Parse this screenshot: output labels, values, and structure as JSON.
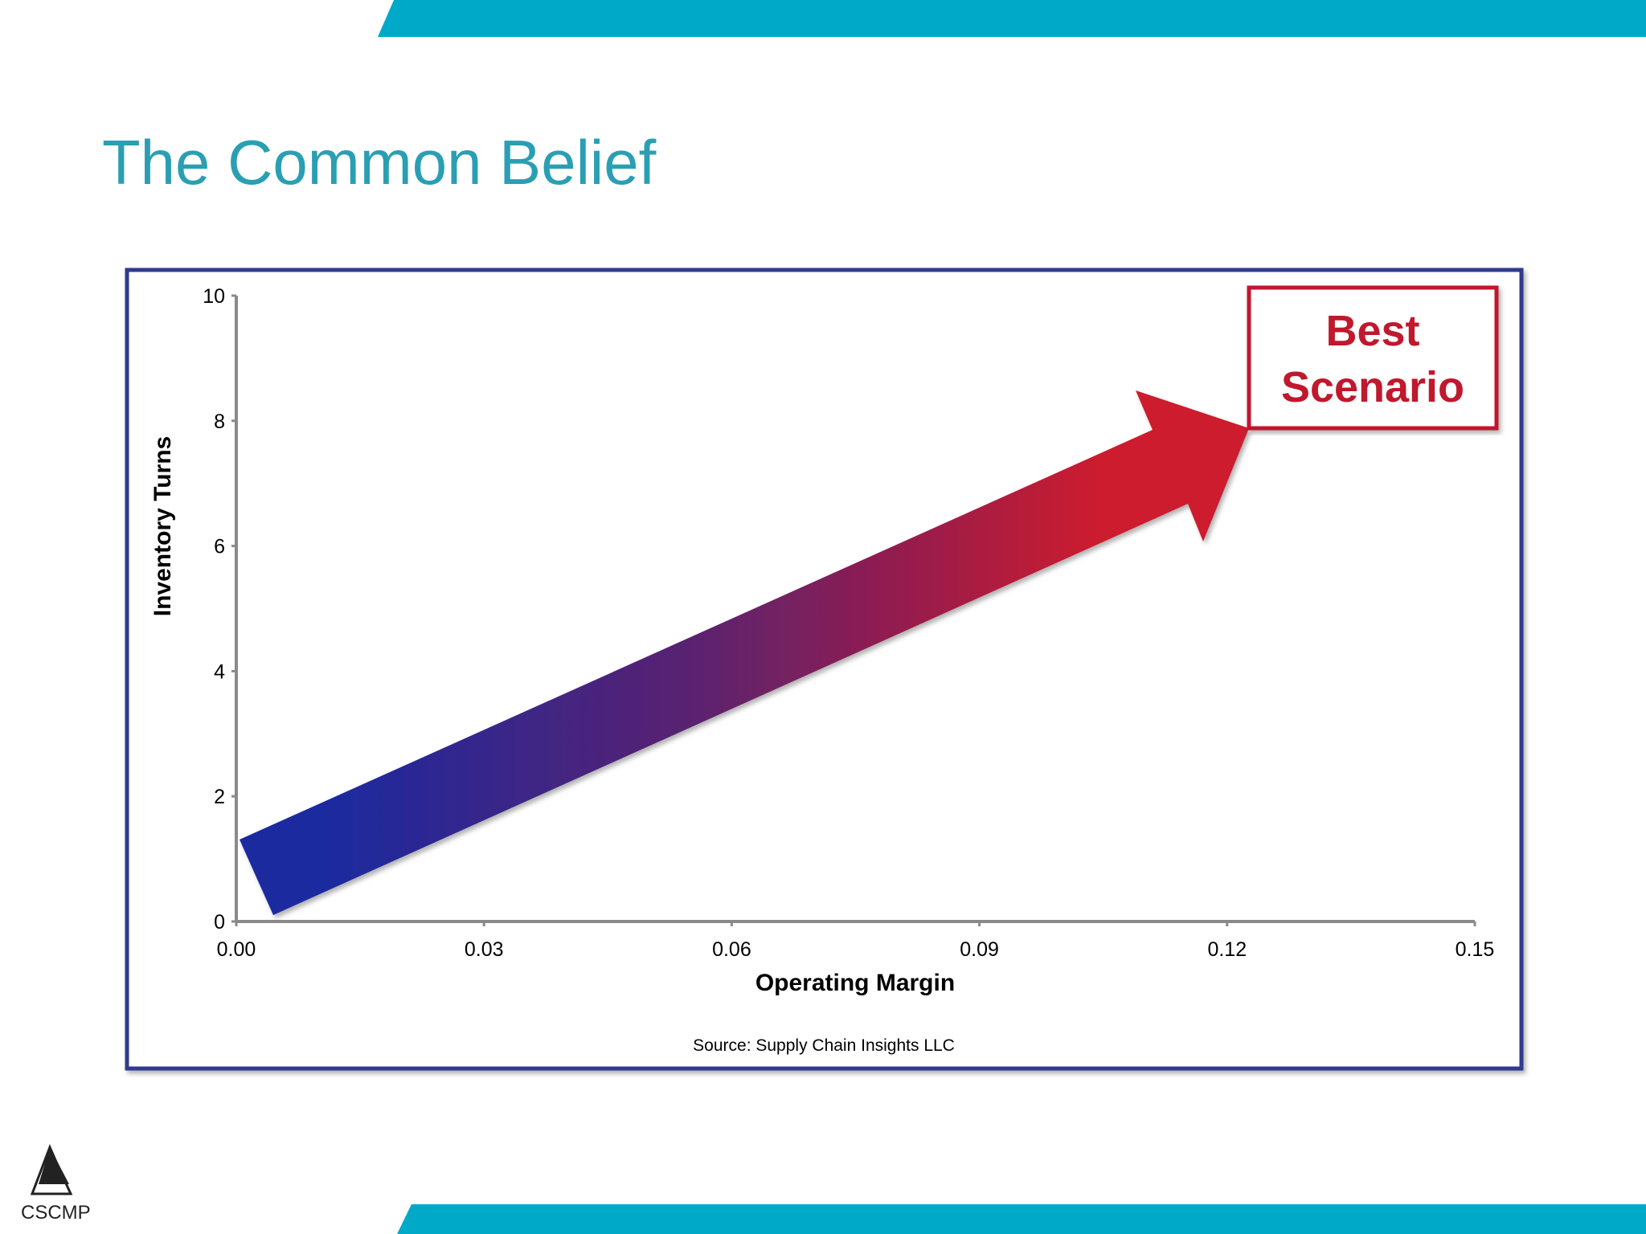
{
  "header": {
    "title": "The Common Belief"
  },
  "chart_data": {
    "type": "scatter",
    "x_label": "Operating Margin",
    "y_label": "Inventory Turns",
    "xlim": [
      0,
      0.15
    ],
    "xticks": [
      {
        "value": 0,
        "label": "0.00"
      },
      0.03,
      0.06,
      0.09,
      0.12,
      0.15
    ],
    "ylim": [
      0,
      10
    ],
    "yticks": [
      0,
      2,
      4,
      6,
      8,
      10
    ],
    "annotation": [
      "Best",
      "Scenario"
    ],
    "source": "Source:  Supply Chain Insights LLC"
  },
  "footer": {
    "logo": "CSCMP"
  }
}
